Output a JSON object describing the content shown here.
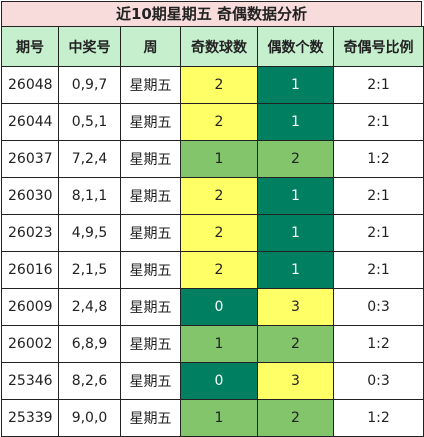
{
  "title": "近10期星期五 奇偶数据分析",
  "headers": [
    "期号",
    "中奖号",
    "周",
    "奇数球数",
    "偶数个数",
    "奇偶号比例"
  ],
  "colors": {
    "header_bg": "#c6efce",
    "title_bg": "#f8dcdc",
    "yellow": "#ffff66",
    "teal": "#008060",
    "green": "#82c56b"
  },
  "rows": [
    {
      "issue": "26048",
      "numbers": "0,9,7",
      "weekday": "星期五",
      "odd": "2",
      "even": "1",
      "ratio": "2:1",
      "odd_color": "yellow",
      "even_color": "teal"
    },
    {
      "issue": "26044",
      "numbers": "0,5,1",
      "weekday": "星期五",
      "odd": "2",
      "even": "1",
      "ratio": "2:1",
      "odd_color": "yellow",
      "even_color": "teal"
    },
    {
      "issue": "26037",
      "numbers": "7,2,4",
      "weekday": "星期五",
      "odd": "1",
      "even": "2",
      "ratio": "1:2",
      "odd_color": "green",
      "even_color": "green"
    },
    {
      "issue": "26030",
      "numbers": "8,1,1",
      "weekday": "星期五",
      "odd": "2",
      "even": "1",
      "ratio": "2:1",
      "odd_color": "yellow",
      "even_color": "teal"
    },
    {
      "issue": "26023",
      "numbers": "4,9,5",
      "weekday": "星期五",
      "odd": "2",
      "even": "1",
      "ratio": "2:1",
      "odd_color": "yellow",
      "even_color": "teal"
    },
    {
      "issue": "26016",
      "numbers": "2,1,5",
      "weekday": "星期五",
      "odd": "2",
      "even": "1",
      "ratio": "2:1",
      "odd_color": "yellow",
      "even_color": "teal"
    },
    {
      "issue": "26009",
      "numbers": "2,4,8",
      "weekday": "星期五",
      "odd": "0",
      "even": "3",
      "ratio": "0:3",
      "odd_color": "teal",
      "even_color": "yellow"
    },
    {
      "issue": "26002",
      "numbers": "6,8,9",
      "weekday": "星期五",
      "odd": "1",
      "even": "2",
      "ratio": "1:2",
      "odd_color": "green",
      "even_color": "green"
    },
    {
      "issue": "25346",
      "numbers": "8,2,6",
      "weekday": "星期五",
      "odd": "0",
      "even": "3",
      "ratio": "0:3",
      "odd_color": "teal",
      "even_color": "yellow"
    },
    {
      "issue": "25339",
      "numbers": "9,0,0",
      "weekday": "星期五",
      "odd": "1",
      "even": "2",
      "ratio": "1:2",
      "odd_color": "green",
      "even_color": "green"
    }
  ]
}
